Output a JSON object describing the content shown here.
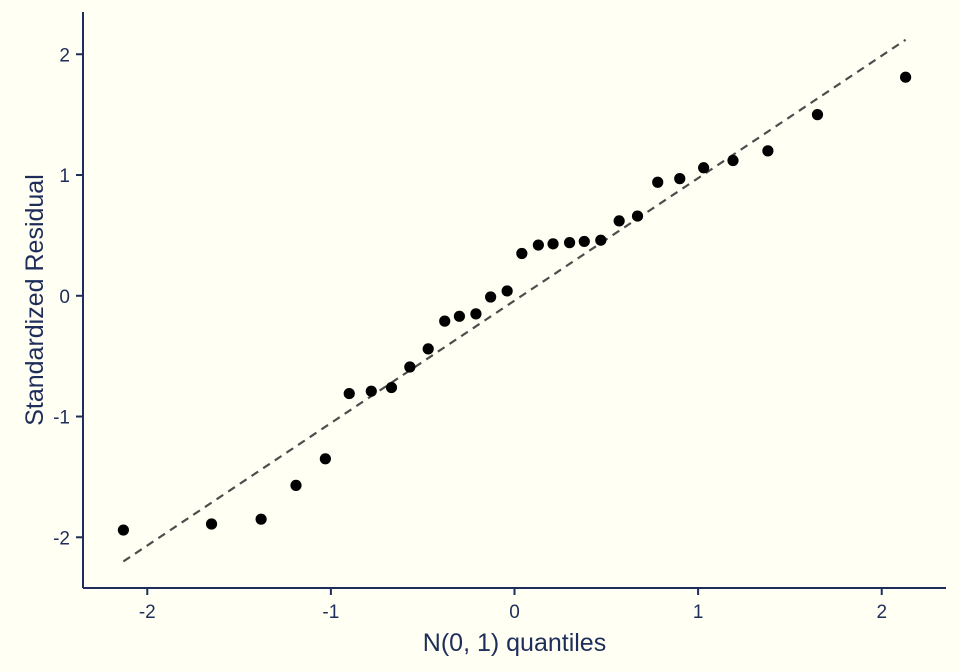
{
  "chart_data": {
    "type": "scatter",
    "xlabel": "N(0, 1) quantiles",
    "ylabel": "Standardized Residual",
    "xlim": [
      -2.35,
      2.35
    ],
    "ylim": [
      -2.42,
      2.35
    ],
    "xticks": [
      -2,
      -1,
      0,
      1,
      2
    ],
    "yticks": [
      -2,
      -1,
      0,
      1,
      2
    ],
    "xtick_labels": [
      "-2",
      "-1",
      "0",
      "1",
      "2"
    ],
    "ytick_labels": [
      "-2",
      "-1",
      "0",
      "1",
      "2"
    ],
    "grid": false,
    "points": [
      {
        "x": -2.13,
        "y": -1.94
      },
      {
        "x": -1.65,
        "y": -1.89
      },
      {
        "x": -1.38,
        "y": -1.85
      },
      {
        "x": -1.19,
        "y": -1.57
      },
      {
        "x": -1.03,
        "y": -1.35
      },
      {
        "x": -0.9,
        "y": -0.81
      },
      {
        "x": -0.78,
        "y": -0.79
      },
      {
        "x": -0.67,
        "y": -0.76
      },
      {
        "x": -0.57,
        "y": -0.59
      },
      {
        "x": -0.47,
        "y": -0.44
      },
      {
        "x": -0.38,
        "y": -0.21
      },
      {
        "x": -0.3,
        "y": -0.17
      },
      {
        "x": -0.21,
        "y": -0.15
      },
      {
        "x": -0.13,
        "y": -0.01
      },
      {
        "x": -0.04,
        "y": 0.04
      },
      {
        "x": 0.04,
        "y": 0.35
      },
      {
        "x": 0.13,
        "y": 0.42
      },
      {
        "x": 0.21,
        "y": 0.43
      },
      {
        "x": 0.3,
        "y": 0.44
      },
      {
        "x": 0.38,
        "y": 0.45
      },
      {
        "x": 0.47,
        "y": 0.46
      },
      {
        "x": 0.57,
        "y": 0.62
      },
      {
        "x": 0.67,
        "y": 0.66
      },
      {
        "x": 0.78,
        "y": 0.94
      },
      {
        "x": 0.9,
        "y": 0.97
      },
      {
        "x": 1.03,
        "y": 1.06
      },
      {
        "x": 1.19,
        "y": 1.12
      },
      {
        "x": 1.38,
        "y": 1.2
      },
      {
        "x": 1.65,
        "y": 1.5
      },
      {
        "x": 2.13,
        "y": 1.81
      }
    ],
    "reference_line": {
      "style": "dashed",
      "x": [
        -2.13,
        2.13
      ],
      "y": [
        -2.2,
        2.12
      ]
    },
    "colors": {
      "background": "#fffff3",
      "points": "#000000",
      "reference_line": "#4d4d4d",
      "axis": "#1f2d5a",
      "text": "#1f2d5a"
    }
  }
}
